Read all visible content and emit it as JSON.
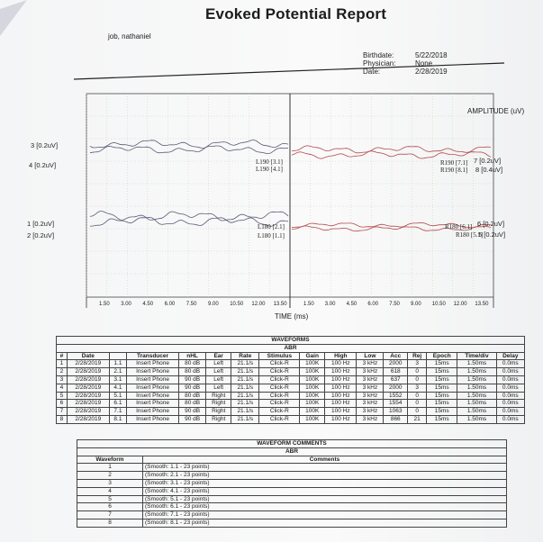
{
  "report": {
    "title": "Evoked Potential Report",
    "patient": "job, nathaniel",
    "info": [
      {
        "label": "Birthdate:",
        "value": "5/22/2018"
      },
      {
        "label": "Physician:",
        "value": "None"
      },
      {
        "label": "Date:",
        "value": "2/28/2019"
      }
    ]
  },
  "plot": {
    "amplitude_label": "AMPLITUDE (uV)",
    "time_label": "TIME (ms)",
    "left_ticks": [
      "1.50",
      "3.00",
      "4.50",
      "6.00",
      "7.50",
      "9.00",
      "10.50",
      "12.00",
      "13.50"
    ],
    "right_ticks": [
      "1.50",
      "3.00",
      "4.50",
      "6.00",
      "7.50",
      "9.00",
      "10.50",
      "12.00",
      "13.50"
    ],
    "left_wave_labels": [
      "3 [0.2uV]",
      "4 [0.2uV]",
      "1 [0.2uV]",
      "2 [0.2uV]"
    ],
    "right_wave_labels": [
      "7 [0.2uV]",
      "8 [0.4uV]",
      "6 [0.2uV]",
      "5 [0.2uV]"
    ],
    "trace_markers": [
      "L190 [3.1]",
      "L190 [4.1]",
      "R190 [7.1]",
      "R190 [8.1]",
      "L180 [2.1]",
      "L180 [1.1]",
      "R180 [6.1]",
      "R180 [5.1]"
    ]
  },
  "waveforms": {
    "title": "WAVEFORMS",
    "subtitle": "ABR",
    "headers": [
      "#",
      "Date",
      "",
      "Transducer",
      "nHL",
      "Ear",
      "Rate",
      "Stimulus",
      "Gain",
      "High",
      "Low",
      "Acc",
      "Rej",
      "Epoch",
      "Time/div",
      "Delay"
    ],
    "rows": [
      [
        "1",
        "2/28/2019",
        "1.1",
        "Insert Phone",
        "80 dB",
        "Left",
        "21.1/s",
        "Click-R",
        "100K",
        "100 Hz",
        "3 kHz",
        "2000",
        "3",
        "15ms",
        "1.50ms",
        "0.0ms"
      ],
      [
        "2",
        "2/28/2019",
        "2.1",
        "Insert Phone",
        "80 dB",
        "Left",
        "21.1/s",
        "Click-R",
        "100K",
        "100 Hz",
        "3 kHz",
        "618",
        "0",
        "15ms",
        "1.50ms",
        "0.0ms"
      ],
      [
        "3",
        "2/28/2019",
        "3.1",
        "Insert Phone",
        "90 dB",
        "Left",
        "21.1/s",
        "Click-R",
        "100K",
        "100 Hz",
        "3 kHz",
        "637",
        "0",
        "15ms",
        "1.50ms",
        "0.0ms"
      ],
      [
        "4",
        "2/28/2019",
        "4.1",
        "Insert Phone",
        "90 dB",
        "Left",
        "21.1/s",
        "Click-R",
        "100K",
        "100 Hz",
        "3 kHz",
        "2000",
        "3",
        "15ms",
        "1.50ms",
        "0.0ms"
      ],
      [
        "5",
        "2/28/2019",
        "5.1",
        "Insert Phone",
        "80 dB",
        "Right",
        "21.1/s",
        "Click-R",
        "100K",
        "100 Hz",
        "3 kHz",
        "1552",
        "0",
        "15ms",
        "1.50ms",
        "0.0ms"
      ],
      [
        "6",
        "2/28/2019",
        "6.1",
        "Insert Phone",
        "80 dB",
        "Right",
        "21.1/s",
        "Click-R",
        "100K",
        "100 Hz",
        "3 kHz",
        "1554",
        "0",
        "15ms",
        "1.50ms",
        "0.0ms"
      ],
      [
        "7",
        "2/28/2019",
        "7.1",
        "Insert Phone",
        "90 dB",
        "Right",
        "21.1/s",
        "Click-R",
        "100K",
        "100 Hz",
        "3 kHz",
        "1063",
        "0",
        "15ms",
        "1.50ms",
        "0.0ms"
      ],
      [
        "8",
        "2/28/2019",
        "8.1",
        "Insert Phone",
        "90 dB",
        "Right",
        "21.1/s",
        "Click-R",
        "100K",
        "100 Hz",
        "3 kHz",
        "866",
        "21",
        "15ms",
        "1.50ms",
        "0.0ms"
      ]
    ]
  },
  "comments": {
    "title": "WAVEFORM COMMENTS",
    "subtitle": "ABR",
    "headers": [
      "Waveform",
      "Comments"
    ],
    "rows": [
      [
        "1",
        "(Smooth: 1.1 - 23 points)"
      ],
      [
        "2",
        "(Smooth: 2.1 - 23 points)"
      ],
      [
        "3",
        "(Smooth: 3.1 - 23 points)"
      ],
      [
        "4",
        "(Smooth: 4.1 - 23 points)"
      ],
      [
        "5",
        "(Smooth: 5.1 - 23 points)"
      ],
      [
        "6",
        "(Smooth: 6.1 - 23 points)"
      ],
      [
        "7",
        "(Smooth: 7.1 - 23 points)"
      ],
      [
        "8",
        "(Smooth: 8.1 - 23 points)"
      ]
    ]
  },
  "colors": {
    "left_trace": "#5a5a78",
    "right_trace": "#b44a4a",
    "ink": "#1c1c1c"
  }
}
